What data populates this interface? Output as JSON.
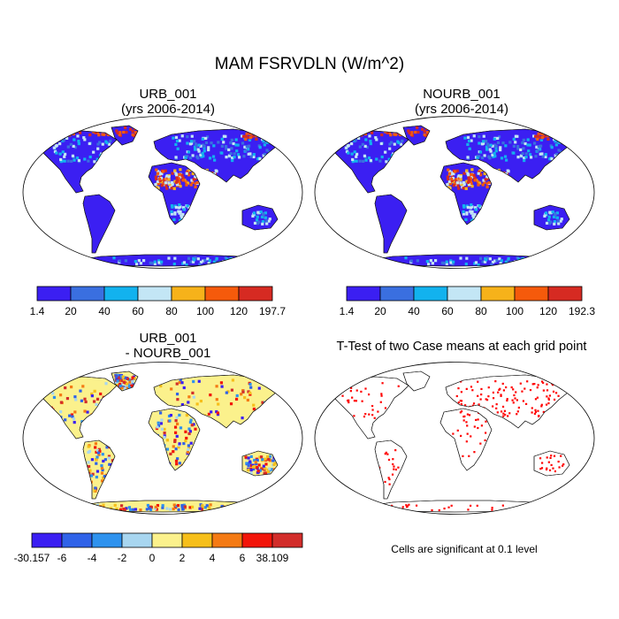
{
  "title": "MAM FSRVDLN (W/m^2)",
  "panels": {
    "urb": {
      "title_line1": "URB_001",
      "title_line2": "(yrs 2006-2014)",
      "colorbar": {
        "labels": [
          "1.4",
          "20",
          "40",
          "60",
          "80",
          "100",
          "120",
          "197.7"
        ],
        "colors": [
          "#3b1ff2",
          "#3a6fe0",
          "#12b2ee",
          "#c3e6f5",
          "#f6b21a",
          "#f55a0b",
          "#d62a22"
        ]
      }
    },
    "nourb": {
      "title_line1": "NOURB_001",
      "title_line2": "(yrs 2006-2014)",
      "colorbar": {
        "labels": [
          "1.4",
          "20",
          "40",
          "60",
          "80",
          "100",
          "120",
          "192.3"
        ],
        "colors": [
          "#3b1ff2",
          "#3a6fe0",
          "#12b2ee",
          "#c3e6f5",
          "#f6b21a",
          "#f55a0b",
          "#d62a22"
        ]
      }
    },
    "diff": {
      "title_line1": "URB_001",
      "title_line2": "- NOURB_001",
      "colorbar": {
        "labels": [
          "-30.157",
          "-6",
          "-4",
          "-2",
          "0",
          "2",
          "4",
          "6",
          "38.109"
        ],
        "colors": [
          "#3b1ff2",
          "#2f62e8",
          "#2e92ee",
          "#a8d6f0",
          "#fbf18c",
          "#f6bf1a",
          "#f47a14",
          "#f2150a",
          "#d22d2a"
        ]
      }
    },
    "ttest": {
      "title": "T-Test of two Case means at each grid point",
      "note": "Cells are significant at 0.1 level"
    }
  }
}
